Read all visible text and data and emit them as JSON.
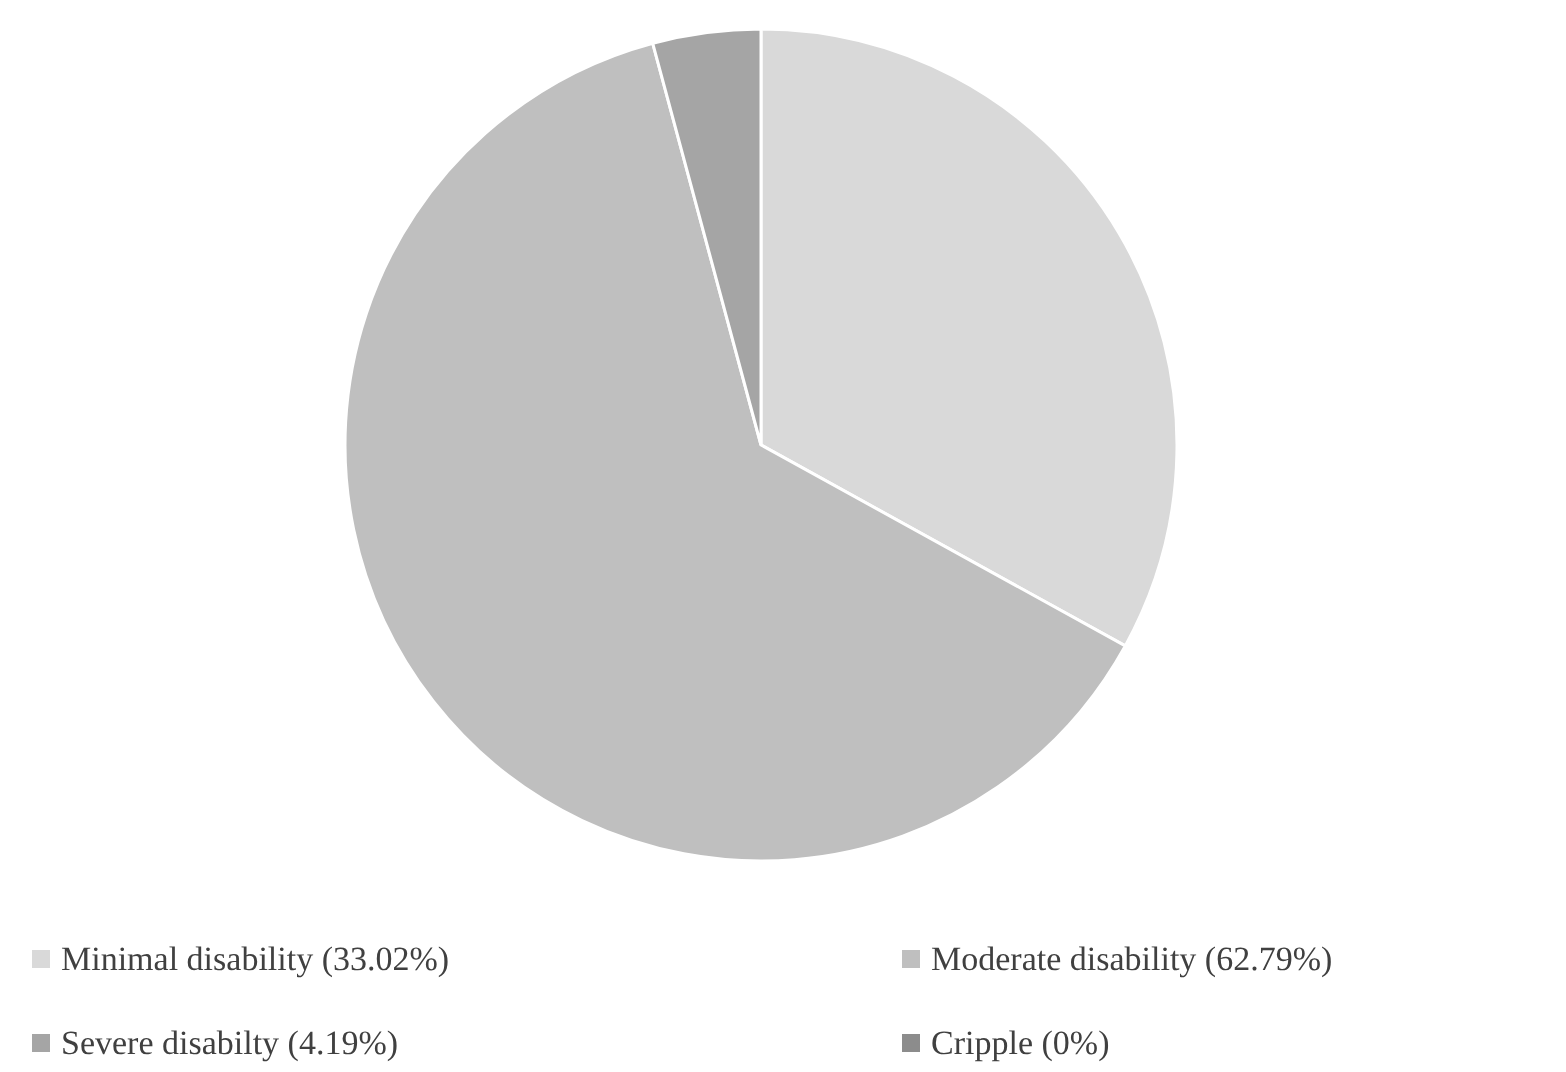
{
  "chart_data": {
    "type": "pie",
    "categories": [
      "Minimal disability (33.02%)",
      "Moderate disability (62.79%)",
      "Severe disabilty (4.19%)",
      "Cripple (0%)"
    ],
    "values": [
      33.02,
      62.79,
      4.19,
      0
    ],
    "colors": [
      "#d9d9d9",
      "#bfbfbf",
      "#a5a5a5",
      "#8c8c8c"
    ],
    "legend": "bottom"
  }
}
